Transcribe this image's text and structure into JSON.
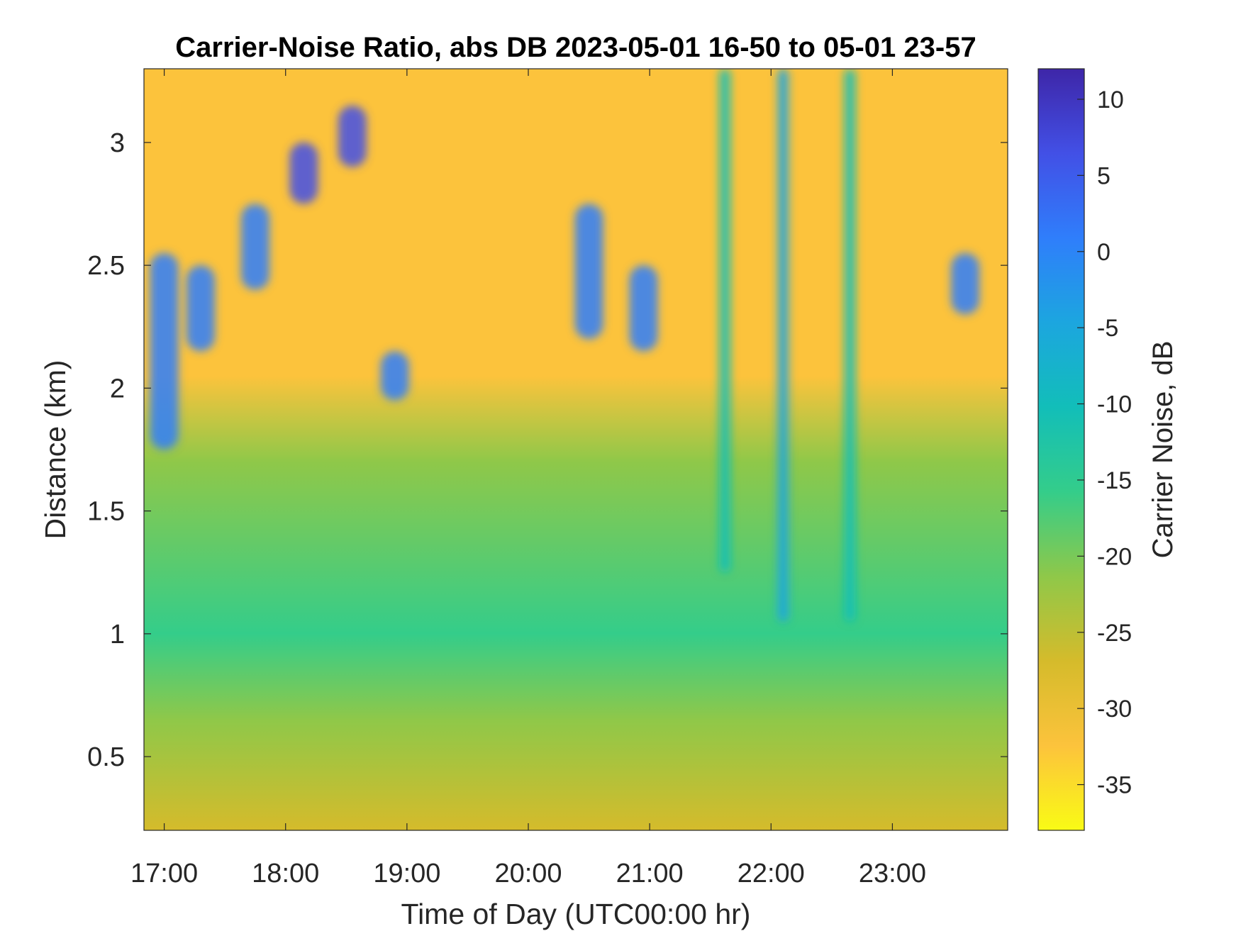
{
  "chart_data": {
    "type": "heatmap",
    "title": "Carrier-Noise Ratio, abs DB 2023-05-01 16-50 to 05-01 23-57",
    "xlabel": "Time of Day (UTC00:00 hr)",
    "ylabel": "Distance (km)",
    "colorbar_label": "Carrier Noise, dB",
    "x_range": [
      "16:50",
      "23:57"
    ],
    "xlim": [
      16.833,
      23.95
    ],
    "ylim": [
      0.2,
      3.3
    ],
    "clim": [
      -38,
      12
    ],
    "x_ticks": [
      "17:00",
      "18:00",
      "19:00",
      "20:00",
      "21:00",
      "22:00",
      "23:00"
    ],
    "y_ticks": [
      "0.5",
      "1",
      "1.5",
      "2",
      "2.5",
      "3"
    ],
    "y_tick_values": [
      0.5,
      1,
      1.5,
      2,
      2.5,
      3
    ],
    "colorbar_ticks": [
      "10",
      "5",
      "0",
      "-5",
      "-10",
      "-15",
      "-20",
      "-25",
      "-30",
      "-35"
    ],
    "colorbar_tick_values": [
      10,
      5,
      0,
      -5,
      -10,
      -15,
      -20,
      -25,
      -30,
      -35
    ],
    "colormap": "parula",
    "colormap_stops": [
      "#3E26A8",
      "#4250E6",
      "#2F7EFB",
      "#1CA6DF",
      "#12BEB9",
      "#34CD8A",
      "#8FC849",
      "#D5BB2B",
      "#FCC33C",
      "#F9FB15"
    ],
    "background_level_db": -32,
    "near_range_level_db": -22,
    "mid_range_level_db": -16,
    "cloud_features": [
      {
        "time": 17.0,
        "distance_start": 1.75,
        "distance_end": 2.55,
        "db": 2
      },
      {
        "time": 17.3,
        "distance_start": 2.15,
        "distance_end": 2.5,
        "db": 3
      },
      {
        "time": 17.75,
        "distance_start": 2.4,
        "distance_end": 2.75,
        "db": 3
      },
      {
        "time": 18.15,
        "distance_start": 2.75,
        "distance_end": 3.0,
        "db": 4
      },
      {
        "time": 18.55,
        "distance_start": 2.9,
        "distance_end": 3.15,
        "db": 4
      },
      {
        "time": 18.9,
        "distance_start": 1.95,
        "distance_end": 2.15,
        "db": 3
      },
      {
        "time": 20.5,
        "distance_start": 2.2,
        "distance_end": 2.75,
        "db": 1
      },
      {
        "time": 20.95,
        "distance_start": 2.15,
        "distance_end": 2.5,
        "db": 1
      },
      {
        "time": 21.62,
        "distance_start": 1.25,
        "distance_end": 3.3,
        "db": -8
      },
      {
        "time": 22.1,
        "distance_start": 1.05,
        "distance_end": 3.3,
        "db": -4
      },
      {
        "time": 22.65,
        "distance_start": 1.05,
        "distance_end": 3.3,
        "db": -10
      },
      {
        "time": 23.6,
        "distance_start": 2.3,
        "distance_end": 2.55,
        "db": 2
      }
    ]
  }
}
